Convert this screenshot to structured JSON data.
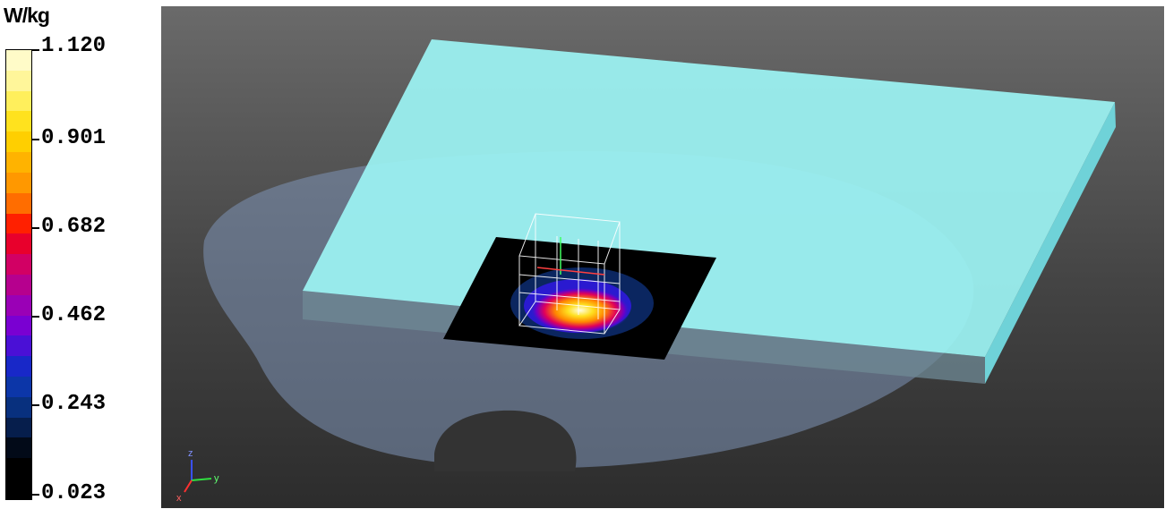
{
  "legend": {
    "unit": "W/kg",
    "labels": [
      "1.120",
      "0.901",
      "0.682",
      "0.462",
      "0.243",
      "0.023"
    ],
    "colors": [
      "#fffbc8",
      "#fff69a",
      "#ffef5c",
      "#ffe21e",
      "#ffcf00",
      "#ffb300",
      "#ff9800",
      "#ff6d00",
      "#ff2000",
      "#e8002c",
      "#d20064",
      "#b6008e",
      "#9a00b6",
      "#7a00d2",
      "#4a10d6",
      "#1828c8",
      "#0c36a8",
      "#08307e",
      "#061e4c",
      "#020a18",
      "#000000",
      "#000000"
    ]
  },
  "axes": {
    "z": "z",
    "y": "y",
    "x": "x"
  }
}
